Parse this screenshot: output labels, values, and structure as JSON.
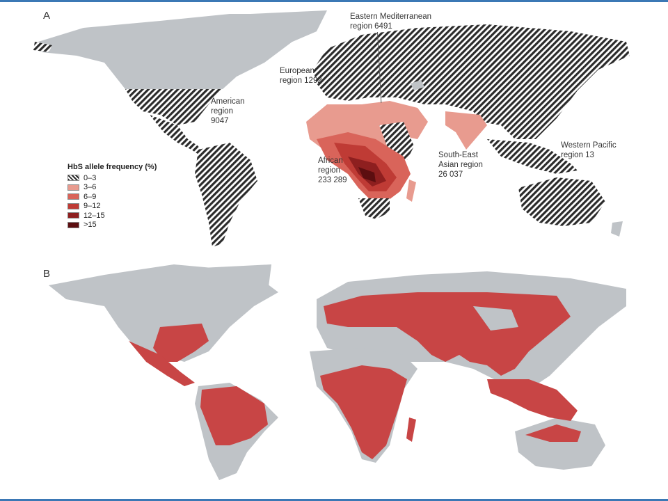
{
  "panel_a": {
    "letter": "A",
    "legend": {
      "title": "HbS allele frequency (%)",
      "items": [
        {
          "label": "0–3",
          "color": "hatch"
        },
        {
          "label": "3–6",
          "color": "#e89b8f"
        },
        {
          "label": "6–9",
          "color": "#d9645a"
        },
        {
          "label": "9–12",
          "color": "#bf3b35"
        },
        {
          "label": "12–15",
          "color": "#8e1f1f"
        },
        {
          "label": ">15",
          "color": "#5c0e10"
        }
      ]
    },
    "regions": {
      "american": "American\nregion\n9047",
      "european": "European\nregion 1292",
      "eastern_med": "Eastern Mediterranean\nregion 6491",
      "african": "African\nregion\n233 289",
      "south_east_asian": "South-East\nAsian region\n26 037",
      "western_pacific": "Western Pacific\nregion 13"
    }
  },
  "panel_b": {
    "letter": "B"
  },
  "colors": {
    "land": "#bfc3c7",
    "hatch_dark": "#2b2b2b",
    "malaria": "#c84545",
    "frame_band": "#3b78b5"
  }
}
